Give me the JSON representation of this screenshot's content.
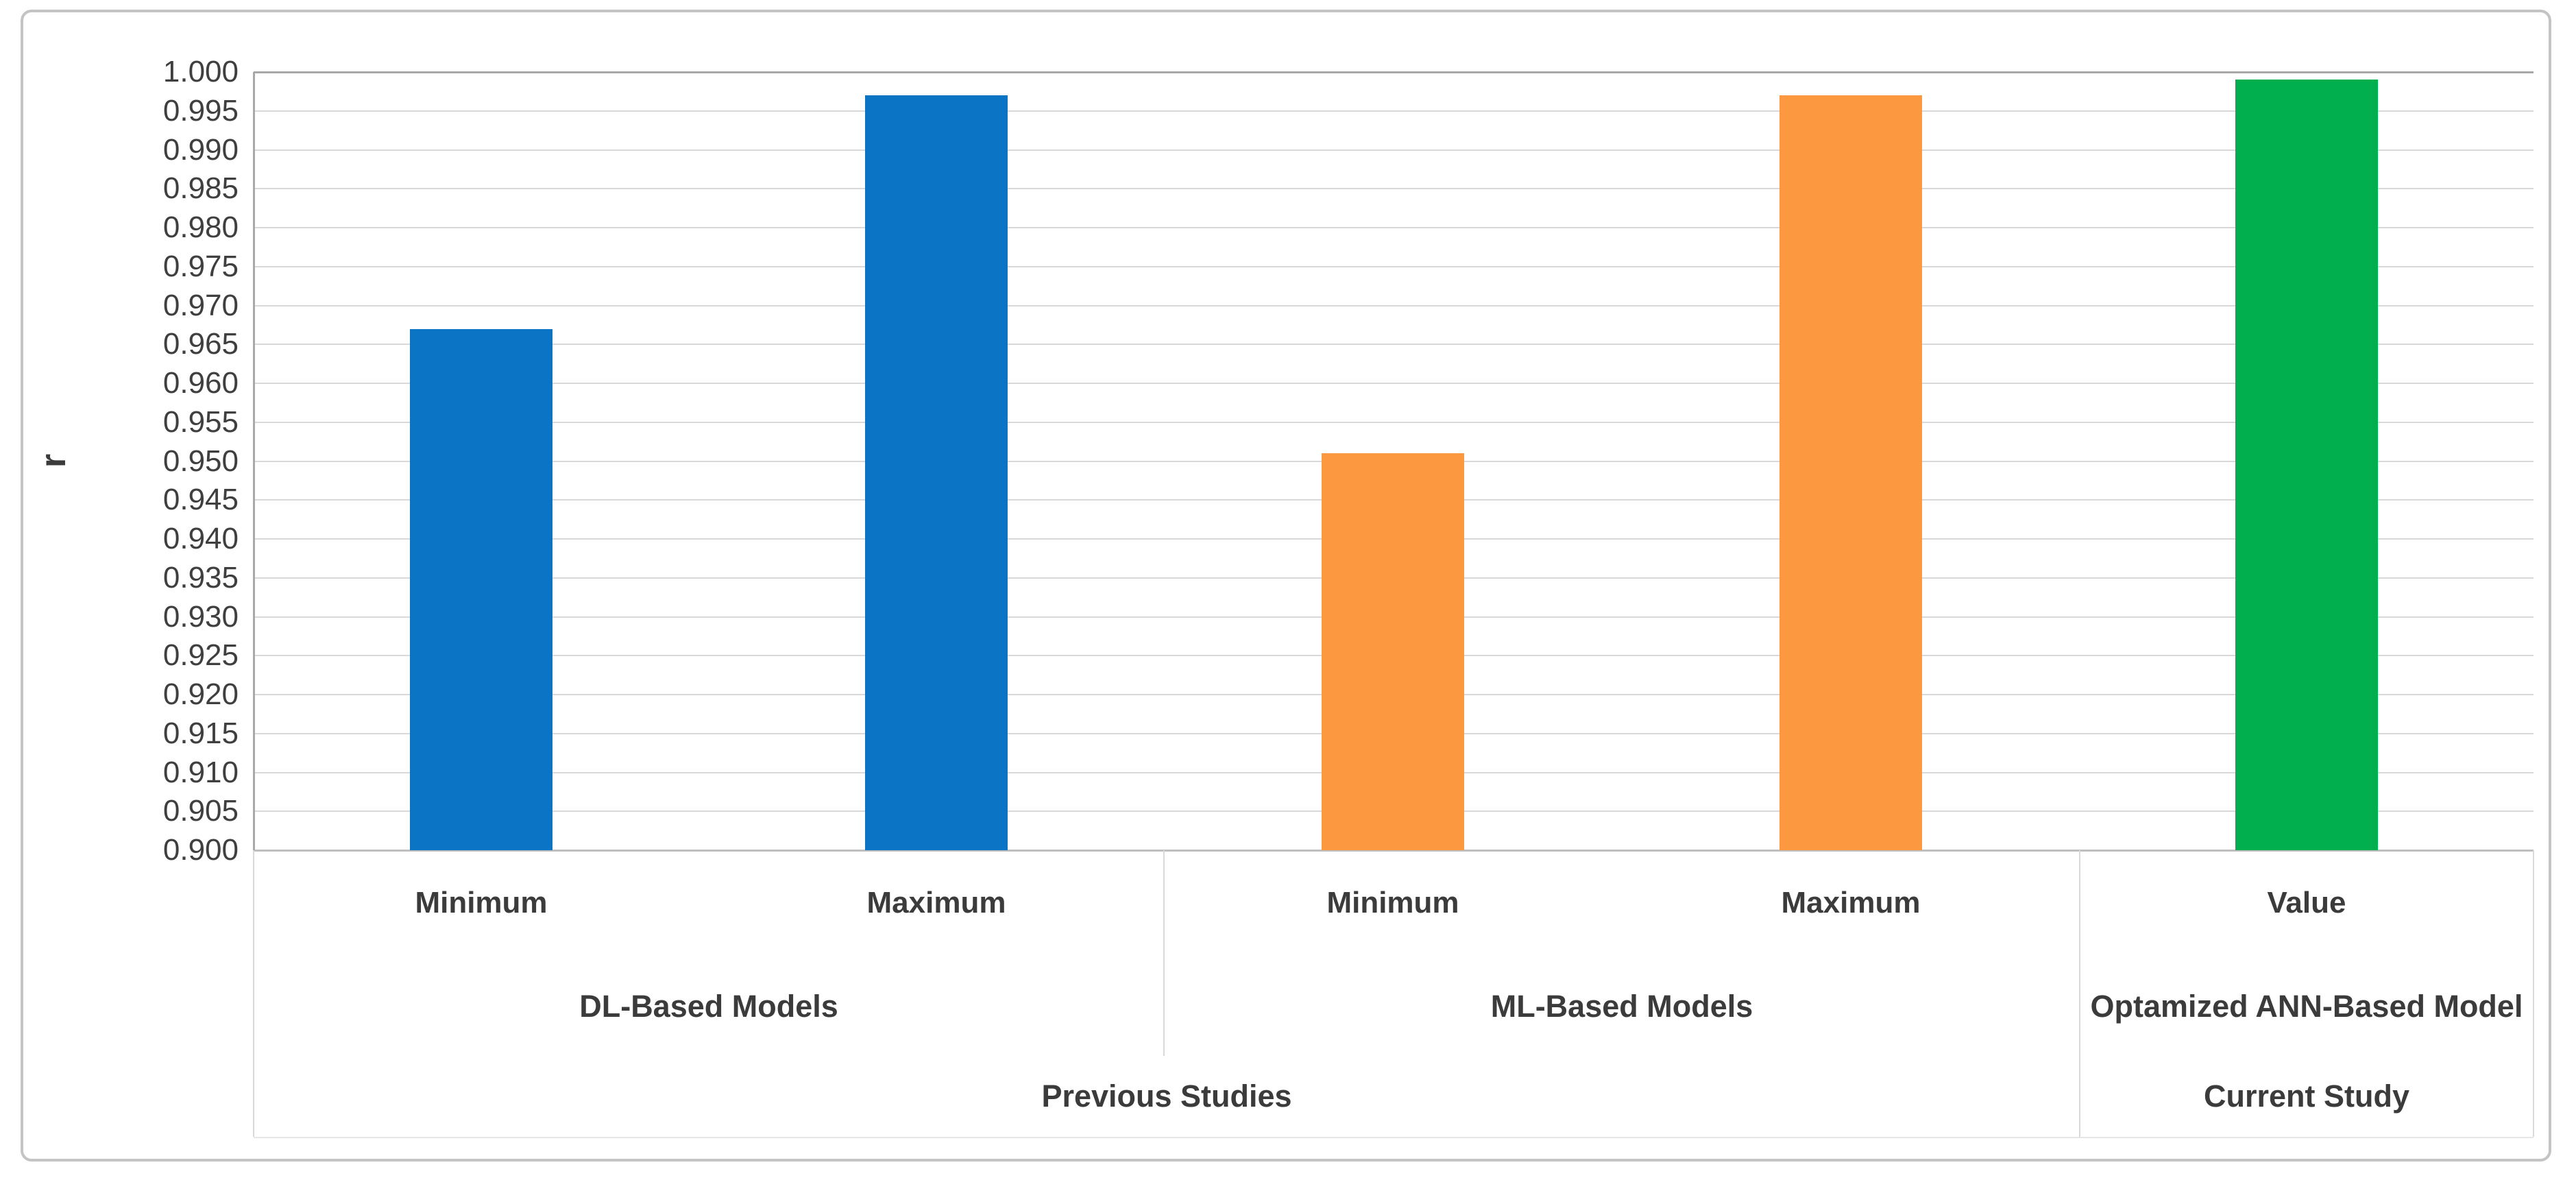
{
  "figure": {
    "background_color": "#FFFFFF",
    "frame_color": "#C4C4C4"
  },
  "chart_data": {
    "type": "bar",
    "title": "",
    "xlabel": "",
    "ylabel": "r",
    "ylim": [
      0.9,
      1.0
    ],
    "ytick_step": 0.005,
    "ytick_labels": [
      "1.000",
      "0.995",
      "0.990",
      "0.985",
      "0.980",
      "0.975",
      "0.970",
      "0.965",
      "0.960",
      "0.955",
      "0.950",
      "0.945",
      "0.940",
      "0.935",
      "0.930",
      "0.925",
      "0.920",
      "0.915",
      "0.910",
      "0.905",
      "0.900"
    ],
    "grid": true,
    "legend": false,
    "bars": [
      {
        "category": "Minimum",
        "value": 0.967,
        "color": "#0B74C4"
      },
      {
        "category": "Maximum",
        "value": 0.997,
        "color": "#0B74C4"
      },
      {
        "category": "Minimum",
        "value": 0.951,
        "color": "#FB9840"
      },
      {
        "category": "Maximum",
        "value": 0.997,
        "color": "#FB9840"
      },
      {
        "category": "Value",
        "value": 0.999,
        "color": "#02AF4E"
      }
    ],
    "groups": [
      {
        "label": "DL-Based Models",
        "span": 2
      },
      {
        "label": "ML-Based Models",
        "span": 2
      },
      {
        "label": "Optamized ANN-Based Model",
        "span": 1
      }
    ],
    "top_groups": [
      {
        "label": "Previous Studies",
        "group_span": 2
      },
      {
        "label": "Current Study",
        "group_span": 1
      }
    ]
  },
  "colors": {
    "gridline": "#D9D9D9",
    "gridline_top": "#A9A9A9",
    "axis_line": "#A9A9A9",
    "baseline": "#BFBFBF",
    "divider": "#D9D9D9",
    "text": "#3B3B3B",
    "tick_text": "#3F3F3F",
    "bar_blue": "#0B74C4",
    "bar_orange": "#FB9840",
    "bar_green": "#02AF4E"
  }
}
